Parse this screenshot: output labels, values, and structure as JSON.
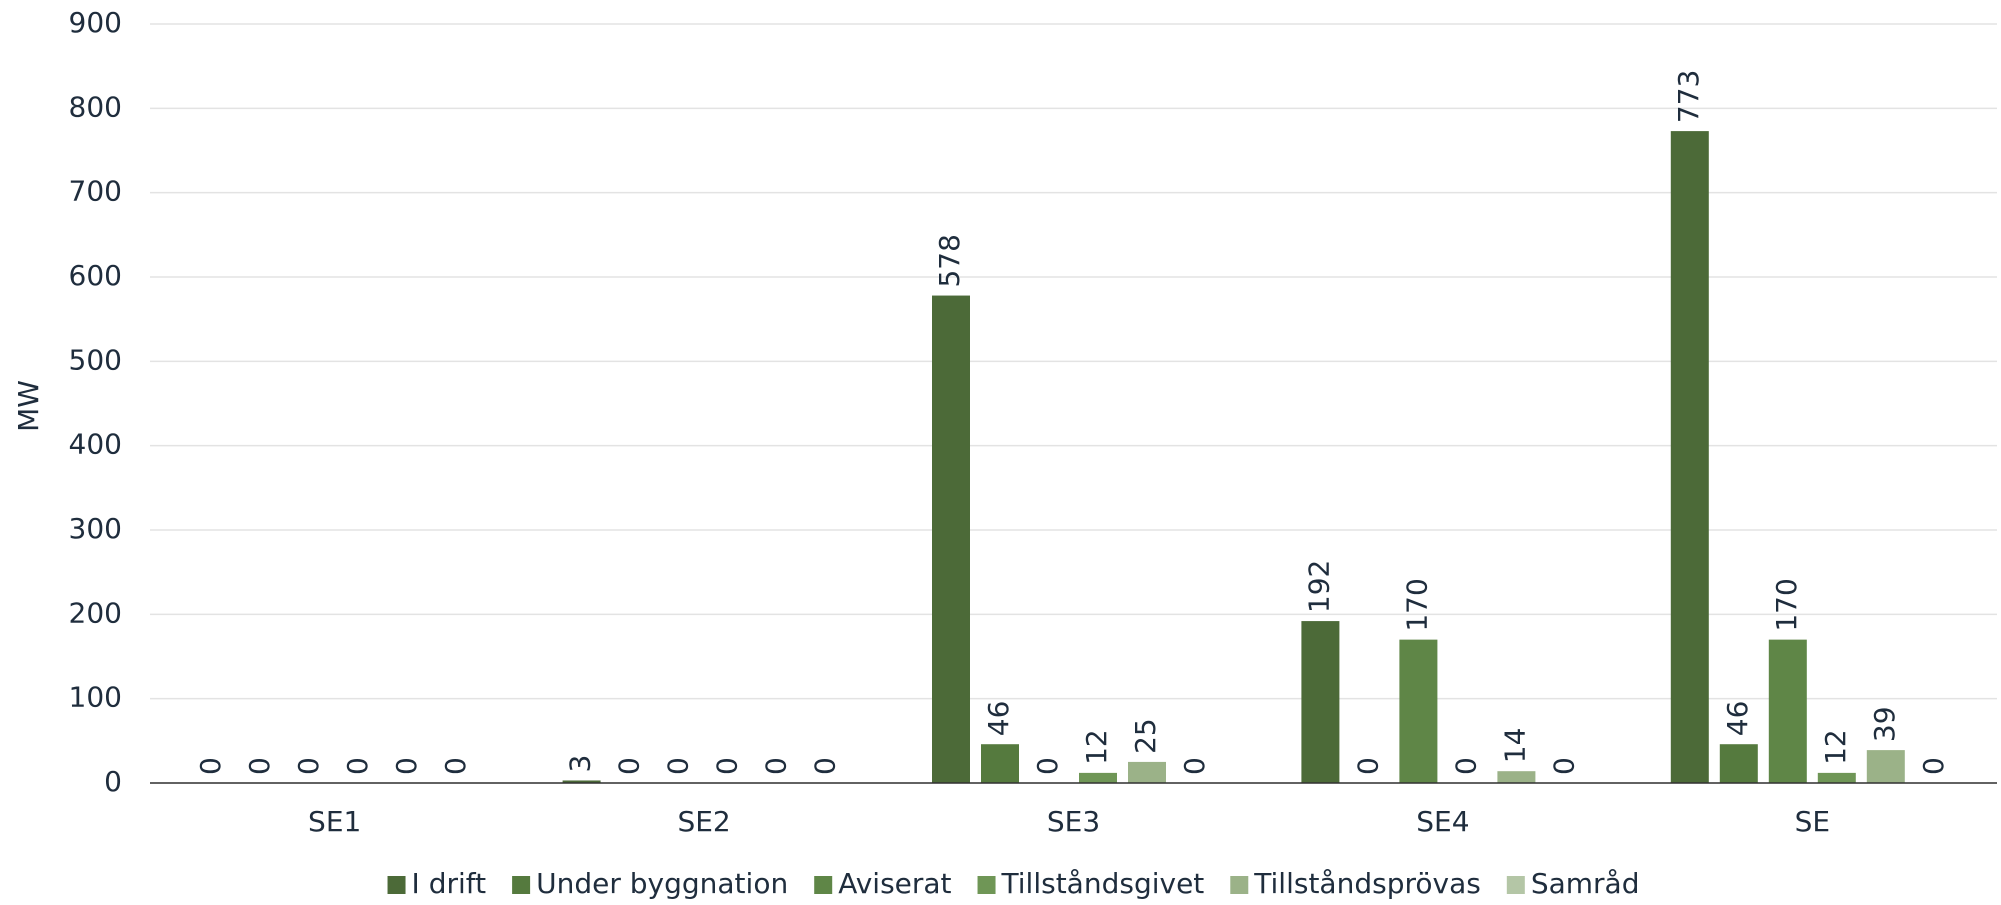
{
  "chart_data": {
    "type": "bar",
    "y_label": "MW",
    "categories": [
      "SE1",
      "SE2",
      "SE3",
      "SE4",
      "SE"
    ],
    "series": [
      {
        "name": "I drift",
        "color": "#4c6a38",
        "values": [
          0,
          3,
          578,
          192,
          773
        ]
      },
      {
        "name": "Under byggnation",
        "color": "#557a3e",
        "values": [
          0,
          0,
          46,
          0,
          46
        ]
      },
      {
        "name": "Aviserat",
        "color": "#5f8647",
        "values": [
          0,
          0,
          0,
          170,
          170
        ]
      },
      {
        "name": "Tillståndsgivet",
        "color": "#6f9656",
        "values": [
          0,
          0,
          12,
          0,
          12
        ]
      },
      {
        "name": "Tillståndsprövas",
        "color": "#9bb288",
        "values": [
          0,
          0,
          25,
          14,
          39
        ]
      },
      {
        "name": "Samråd",
        "color": "#b4c6a6",
        "values": [
          0,
          0,
          0,
          0,
          0
        ]
      }
    ],
    "ylim": [
      0,
      900
    ],
    "yticks": [
      0,
      100,
      200,
      300,
      400,
      500,
      600,
      700,
      800,
      900
    ],
    "grid": true,
    "legend": "bottom"
  }
}
